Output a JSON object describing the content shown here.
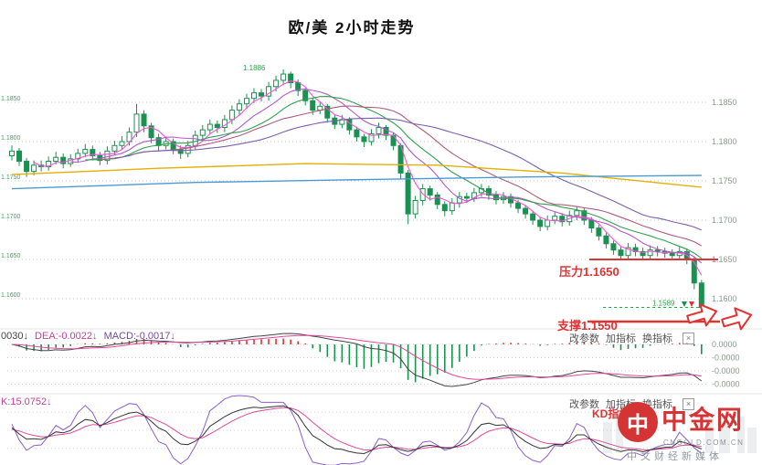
{
  "title": "欧/美 2小时走势",
  "panel_controls": {
    "change_params": "改参数",
    "add_indicator": "加指标",
    "switch_indicator": "换指标",
    "close": "×"
  },
  "macd_panel": {
    "dif_text": "0030↓",
    "dea_text": "DEA:-0.0022↓",
    "macd_text": "MACD:-0.0017↓"
  },
  "kdj_panel": {
    "k_text": "K:15.0752↓",
    "signal": "KD指标超卖"
  },
  "annotations": {
    "resistance": "压力1.1650",
    "support": "支撑1.1550",
    "peak": "1.1886",
    "last": "1.1589"
  },
  "axes": {
    "price_labels": [
      "1.1850",
      "1.1800",
      "1.1750",
      "1.1700",
      "1.1650",
      "1.1600"
    ],
    "price_values": [
      1.185,
      1.18,
      1.175,
      1.17,
      1.165,
      1.16
    ],
    "macd_labels": [
      "0.0000",
      "-0.0000",
      "-0.0000",
      "-0.0000"
    ]
  },
  "watermark": {
    "logo_glyph": "中",
    "name": "中金网",
    "domain": "CNGOLD.COM.CN",
    "tagline": "中文财经新媒体"
  },
  "chart_data": {
    "type": "candlestick",
    "title": "欧/美 2小时走势",
    "pair": "欧/美",
    "timeframe": "2小时",
    "ylim": [
      1.1571,
      1.1908
    ],
    "resistance": 1.165,
    "support": 1.155,
    "last_price": 1.1589,
    "peak_price": 1.1886,
    "candles": [
      [
        1.1782,
        1.1795,
        1.1776,
        1.1788
      ],
      [
        1.1788,
        1.1792,
        1.1769,
        1.1775
      ],
      [
        1.1775,
        1.1779,
        1.1755,
        1.1762
      ],
      [
        1.1762,
        1.1776,
        1.1757,
        1.177
      ],
      [
        1.177,
        1.1776,
        1.1762,
        1.1768
      ],
      [
        1.1768,
        1.1781,
        1.1763,
        1.1775
      ],
      [
        1.1775,
        1.1787,
        1.1771,
        1.178
      ],
      [
        1.178,
        1.1785,
        1.1766,
        1.1772
      ],
      [
        1.1772,
        1.1784,
        1.1768,
        1.1778
      ],
      [
        1.1778,
        1.1791,
        1.1773,
        1.1785
      ],
      [
        1.1785,
        1.1797,
        1.178,
        1.179
      ],
      [
        1.179,
        1.1795,
        1.1776,
        1.1782
      ],
      [
        1.1782,
        1.1787,
        1.177,
        1.1776
      ],
      [
        1.1776,
        1.1794,
        1.1771,
        1.1788
      ],
      [
        1.1788,
        1.1801,
        1.1783,
        1.1795
      ],
      [
        1.1795,
        1.1807,
        1.179,
        1.18
      ],
      [
        1.18,
        1.1818,
        1.1795,
        1.1812
      ],
      [
        1.1812,
        1.1848,
        1.1806,
        1.1835
      ],
      [
        1.1835,
        1.184,
        1.1812,
        1.182
      ],
      [
        1.182,
        1.1824,
        1.1798,
        1.1805
      ],
      [
        1.1805,
        1.181,
        1.1788,
        1.1795
      ],
      [
        1.1795,
        1.1806,
        1.179,
        1.18
      ],
      [
        1.18,
        1.1804,
        1.1784,
        1.179
      ],
      [
        1.179,
        1.1795,
        1.1778,
        1.1785
      ],
      [
        1.1785,
        1.1801,
        1.178,
        1.1795
      ],
      [
        1.1795,
        1.1814,
        1.179,
        1.1808
      ],
      [
        1.1808,
        1.1821,
        1.1802,
        1.1815
      ],
      [
        1.1815,
        1.1828,
        1.1809,
        1.1822
      ],
      [
        1.1822,
        1.1827,
        1.1811,
        1.1818
      ],
      [
        1.1818,
        1.1834,
        1.1812,
        1.1828
      ],
      [
        1.1828,
        1.1846,
        1.1822,
        1.184
      ],
      [
        1.184,
        1.1854,
        1.1834,
        1.1848
      ],
      [
        1.1848,
        1.1861,
        1.1842,
        1.1855
      ],
      [
        1.1855,
        1.1868,
        1.1849,
        1.1862
      ],
      [
        1.1862,
        1.1867,
        1.1851,
        1.1858
      ],
      [
        1.1858,
        1.1876,
        1.1852,
        1.187
      ],
      [
        1.187,
        1.1884,
        1.1864,
        1.1878
      ],
      [
        1.1878,
        1.1892,
        1.1872,
        1.1886
      ],
      [
        1.1886,
        1.1889,
        1.1868,
        1.1875
      ],
      [
        1.1875,
        1.1879,
        1.1858,
        1.1865
      ],
      [
        1.1865,
        1.1868,
        1.1846,
        1.1852
      ],
      [
        1.1852,
        1.1856,
        1.1834,
        1.184
      ],
      [
        1.184,
        1.1851,
        1.1835,
        1.1845
      ],
      [
        1.1845,
        1.1848,
        1.1824,
        1.183
      ],
      [
        1.183,
        1.1834,
        1.1816,
        1.1822
      ],
      [
        1.1822,
        1.1834,
        1.1817,
        1.1828
      ],
      [
        1.1828,
        1.1831,
        1.1809,
        1.1815
      ],
      [
        1.1815,
        1.1819,
        1.18,
        1.1806
      ],
      [
        1.1806,
        1.181,
        1.1793,
        1.18
      ],
      [
        1.18,
        1.1816,
        1.1795,
        1.181
      ],
      [
        1.181,
        1.1824,
        1.1804,
        1.1818
      ],
      [
        1.1818,
        1.1821,
        1.1802,
        1.1808
      ],
      [
        1.1808,
        1.1812,
        1.1789,
        1.1795
      ],
      [
        1.1795,
        1.1798,
        1.1752,
        1.176
      ],
      [
        1.176,
        1.1764,
        1.1695,
        1.1708
      ],
      [
        1.1708,
        1.1731,
        1.1702,
        1.1725
      ],
      [
        1.1725,
        1.1746,
        1.1719,
        1.174
      ],
      [
        1.174,
        1.1744,
        1.1725,
        1.1732
      ],
      [
        1.1732,
        1.1736,
        1.1714,
        1.172
      ],
      [
        1.172,
        1.1724,
        1.1705,
        1.1712
      ],
      [
        1.1712,
        1.1728,
        1.1707,
        1.1722
      ],
      [
        1.1722,
        1.1736,
        1.1716,
        1.173
      ],
      [
        1.173,
        1.1735,
        1.1722,
        1.1728
      ],
      [
        1.1728,
        1.1741,
        1.1723,
        1.1735
      ],
      [
        1.1735,
        1.1746,
        1.173,
        1.174
      ],
      [
        1.174,
        1.1744,
        1.1726,
        1.1732
      ],
      [
        1.1732,
        1.1737,
        1.172,
        1.1726
      ],
      [
        1.1726,
        1.1736,
        1.1721,
        1.173
      ],
      [
        1.173,
        1.1734,
        1.1716,
        1.1722
      ],
      [
        1.1722,
        1.1726,
        1.1709,
        1.1715
      ],
      [
        1.1715,
        1.1719,
        1.1702,
        1.1708
      ],
      [
        1.1708,
        1.1712,
        1.1694,
        1.17
      ],
      [
        1.17,
        1.1704,
        1.1686,
        1.1692
      ],
      [
        1.1692,
        1.1706,
        1.1687,
        1.17
      ],
      [
        1.17,
        1.1711,
        1.1695,
        1.1705
      ],
      [
        1.1705,
        1.1709,
        1.1692,
        1.1698
      ],
      [
        1.1698,
        1.1712,
        1.1693,
        1.1706
      ],
      [
        1.1706,
        1.1718,
        1.17,
        1.1712
      ],
      [
        1.1712,
        1.1715,
        1.1694,
        1.17
      ],
      [
        1.17,
        1.1704,
        1.1684,
        1.169
      ],
      [
        1.169,
        1.1694,
        1.1674,
        1.168
      ],
      [
        1.168,
        1.1684,
        1.1664,
        1.167
      ],
      [
        1.167,
        1.1674,
        1.1656,
        1.1662
      ],
      [
        1.1662,
        1.1666,
        1.1649,
        1.1655
      ],
      [
        1.1655,
        1.1671,
        1.165,
        1.1665
      ],
      [
        1.1665,
        1.167,
        1.1654,
        1.166
      ],
      [
        1.166,
        1.1665,
        1.1649,
        1.1655
      ],
      [
        1.1655,
        1.1668,
        1.165,
        1.1662
      ],
      [
        1.1662,
        1.1667,
        1.1654,
        1.166
      ],
      [
        1.166,
        1.1665,
        1.1652,
        1.1658
      ],
      [
        1.1658,
        1.1663,
        1.1649,
        1.1655
      ],
      [
        1.1655,
        1.1666,
        1.165,
        1.166
      ],
      [
        1.166,
        1.1664,
        1.1644,
        1.165
      ],
      [
        1.165,
        1.1653,
        1.1612,
        1.162
      ],
      [
        1.162,
        1.1624,
        1.158,
        1.1589
      ]
    ],
    "ma_overlays": {
      "yellow": [
        [
          0,
          1.1758
        ],
        [
          20,
          1.1766
        ],
        [
          40,
          1.1772
        ],
        [
          58,
          1.177
        ],
        [
          75,
          1.176
        ],
        [
          94,
          1.1742
        ]
      ],
      "blue": [
        [
          0,
          1.174
        ],
        [
          25,
          1.1748
        ],
        [
          50,
          1.1752
        ],
        [
          70,
          1.1755
        ],
        [
          94,
          1.1757
        ]
      ]
    },
    "indicators": {
      "macd": {
        "dif": -0.003,
        "dea": -0.0022,
        "macd": -0.0017
      },
      "kdj": {
        "k": 15.0752
      }
    }
  }
}
